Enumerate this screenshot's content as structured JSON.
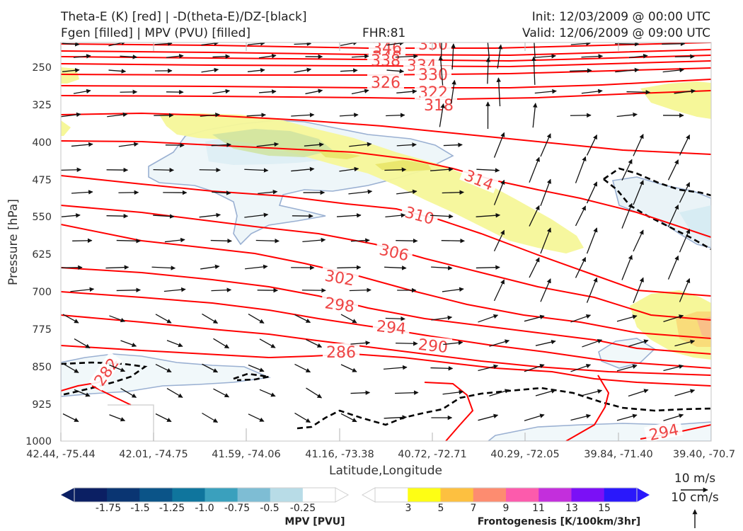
{
  "header": {
    "line1_left": "Theta-E (K) [red] | -D(theta-E)/DZ-[black]",
    "line2_left": "Fgen [filled] | MPV (PVU) [filled]",
    "line2_center": "FHR:81",
    "line1_right": "Init: 12/03/2009 @ 00:00 UTC",
    "line2_right": "Valid: 12/06/2009 @ 09:00 UTC"
  },
  "chart_data": {
    "type": "cross-section",
    "xlabel": "Latitude,Longitude",
    "ylabel": "Pressure [hPa]",
    "x_ticks": [
      "42.44, -75.44",
      "42.01, -74.75",
      "41.59, -74.06",
      "41.16, -73.38",
      "40.72, -72.71",
      "40.29, -72.05",
      "39.84, -71.40",
      "39.40, -70.7"
    ],
    "y_ticks": [
      250,
      325,
      400,
      475,
      550,
      625,
      700,
      775,
      850,
      925,
      1000
    ],
    "ylim": [
      1000,
      200
    ],
    "theta_e_labels": [
      "346",
      "348",
      "350",
      "338",
      "334",
      "330",
      "326",
      "322",
      "318",
      "314",
      "310",
      "306",
      "302",
      "298",
      "294",
      "290",
      "286",
      "282",
      "294"
    ],
    "colors": {
      "theta_e": "#ff0000",
      "label": "#ee4444",
      "mpv_outline": "#9ab0d2",
      "fgen_yellow": "#f6f799",
      "fgen_green": "#cfe3a0"
    }
  },
  "colorbars": {
    "mpv": {
      "ticks": [
        "-1.75",
        "-1.5",
        "-1.25",
        "-1.0",
        "-0.75",
        "-0.5",
        "-0.25"
      ],
      "colors": [
        "#0b1f63",
        "#0a3572",
        "#0b5488",
        "#0f759d",
        "#3aa0bd",
        "#7ebdd4",
        "#b8dce7",
        "#ffffff"
      ],
      "label": "MPV [PVU]"
    },
    "fgen": {
      "ticks": [
        "3",
        "5",
        "7",
        "9",
        "11",
        "13",
        "15"
      ],
      "colors": [
        "#ffffff",
        "#fefe14",
        "#fdc040",
        "#fd8c70",
        "#fc5bac",
        "#c32fdc",
        "#7b10f6",
        "#2a18fb"
      ],
      "label": "Frontogenesis [K/100km/3hr]"
    }
  },
  "wind_key": {
    "top_label": "10 m/s",
    "bottom_label": "10 cm/s"
  }
}
